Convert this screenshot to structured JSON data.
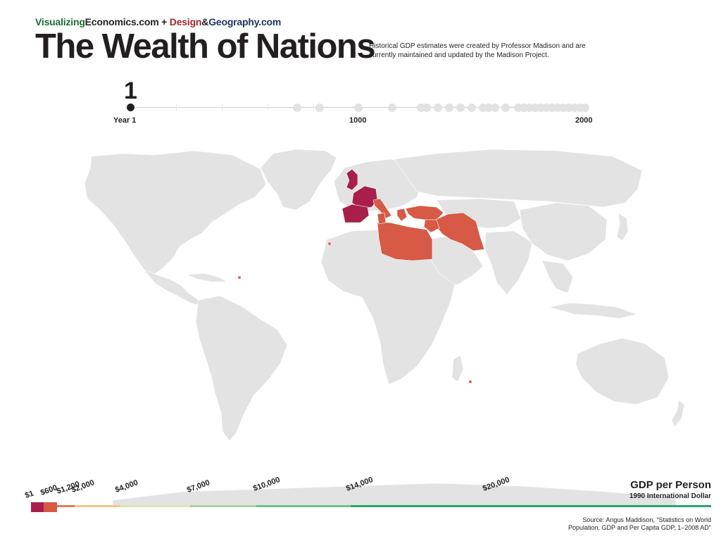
{
  "header": {
    "brand": {
      "part1": "Visualizing",
      "part2": "Economics.com",
      "plus": " + ",
      "part3": "Design",
      "amp": "&",
      "part4": "Geography.com"
    },
    "title": "The Wealth of Nations",
    "subtitle": "Historical GDP estimates were created by Professor Madison and are currently maintained and updated by the Madison Project."
  },
  "timeline": {
    "current_year": "1",
    "label_start": "Year 1",
    "label_mid": "1000",
    "label_end": "2000"
  },
  "legend": {
    "title": "GDP per Person",
    "subtitle": "1990 International Dollar",
    "labels": [
      "$1",
      "$600",
      "$1,200",
      "$2,000",
      "$4,000",
      "$7,000",
      "$10,000",
      "$14,000",
      "$20,000"
    ]
  },
  "source": "Source: Angus Maddison, \"Statistics on World Population, GDP and Per Capita GDP, 1–2008 AD\"",
  "colors": {
    "land": "#e3e3e3",
    "tier_low": "#a8204a",
    "tier_mid": "#d65a45",
    "timeline_active": "#231f20",
    "timeline_inactive": "#e2e2e2"
  },
  "map_data": {
    "highlighted_regions": [
      {
        "name": "United Kingdom",
        "tier": "low"
      },
      {
        "name": "France",
        "tier": "low"
      },
      {
        "name": "Spain",
        "tier": "low"
      },
      {
        "name": "Portugal",
        "tier": "low"
      },
      {
        "name": "Italy",
        "tier": "mid"
      },
      {
        "name": "Greece",
        "tier": "mid"
      },
      {
        "name": "Turkey",
        "tier": "mid"
      },
      {
        "name": "Syria",
        "tier": "mid"
      },
      {
        "name": "Iraq",
        "tier": "mid"
      },
      {
        "name": "Iran",
        "tier": "mid"
      },
      {
        "name": "Egypt",
        "tier": "mid"
      },
      {
        "name": "Libya",
        "tier": "mid"
      },
      {
        "name": "Tunisia",
        "tier": "mid"
      }
    ]
  }
}
